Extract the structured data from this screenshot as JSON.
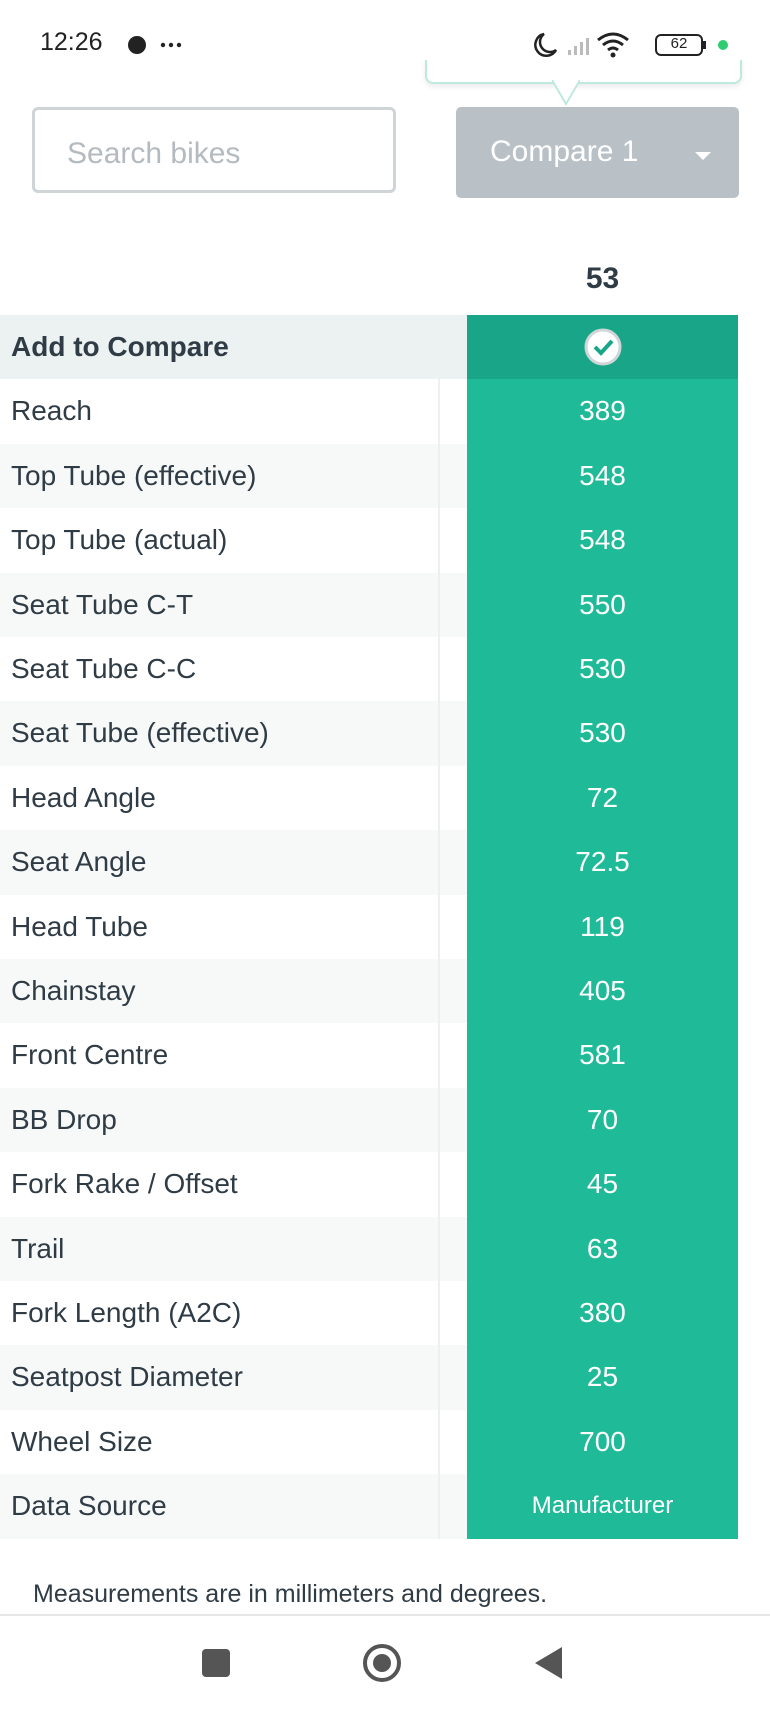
{
  "status_bar": {
    "time": "12:26",
    "battery": "62"
  },
  "search": {
    "placeholder": "Search bikes"
  },
  "compare_button": {
    "label": "Compare 1"
  },
  "table": {
    "column_header": "53",
    "add_row": {
      "label": "Add to Compare"
    },
    "rows": [
      [
        "Reach",
        "389"
      ],
      [
        "Top Tube (effective)",
        "548"
      ],
      [
        "Top Tube (actual)",
        "548"
      ],
      [
        "Seat Tube C-T",
        "550"
      ],
      [
        "Seat Tube C-C",
        "530"
      ],
      [
        "Seat Tube (effective)",
        "530"
      ],
      [
        "Head Angle",
        "72"
      ],
      [
        "Seat Angle",
        "72.5"
      ],
      [
        "Head Tube",
        "119"
      ],
      [
        "Chainstay",
        "405"
      ],
      [
        "Front Centre",
        "581"
      ],
      [
        "BB Drop",
        "70"
      ],
      [
        "Fork Rake / Offset",
        "45"
      ],
      [
        "Trail",
        "63"
      ],
      [
        "Fork Length (A2C)",
        "380"
      ],
      [
        "Seatpost Diameter",
        "25"
      ],
      [
        "Wheel Size",
        "700"
      ],
      [
        "Data Source",
        "Manufacturer"
      ]
    ]
  },
  "footnote": "Measurements are in millimeters and degrees."
}
